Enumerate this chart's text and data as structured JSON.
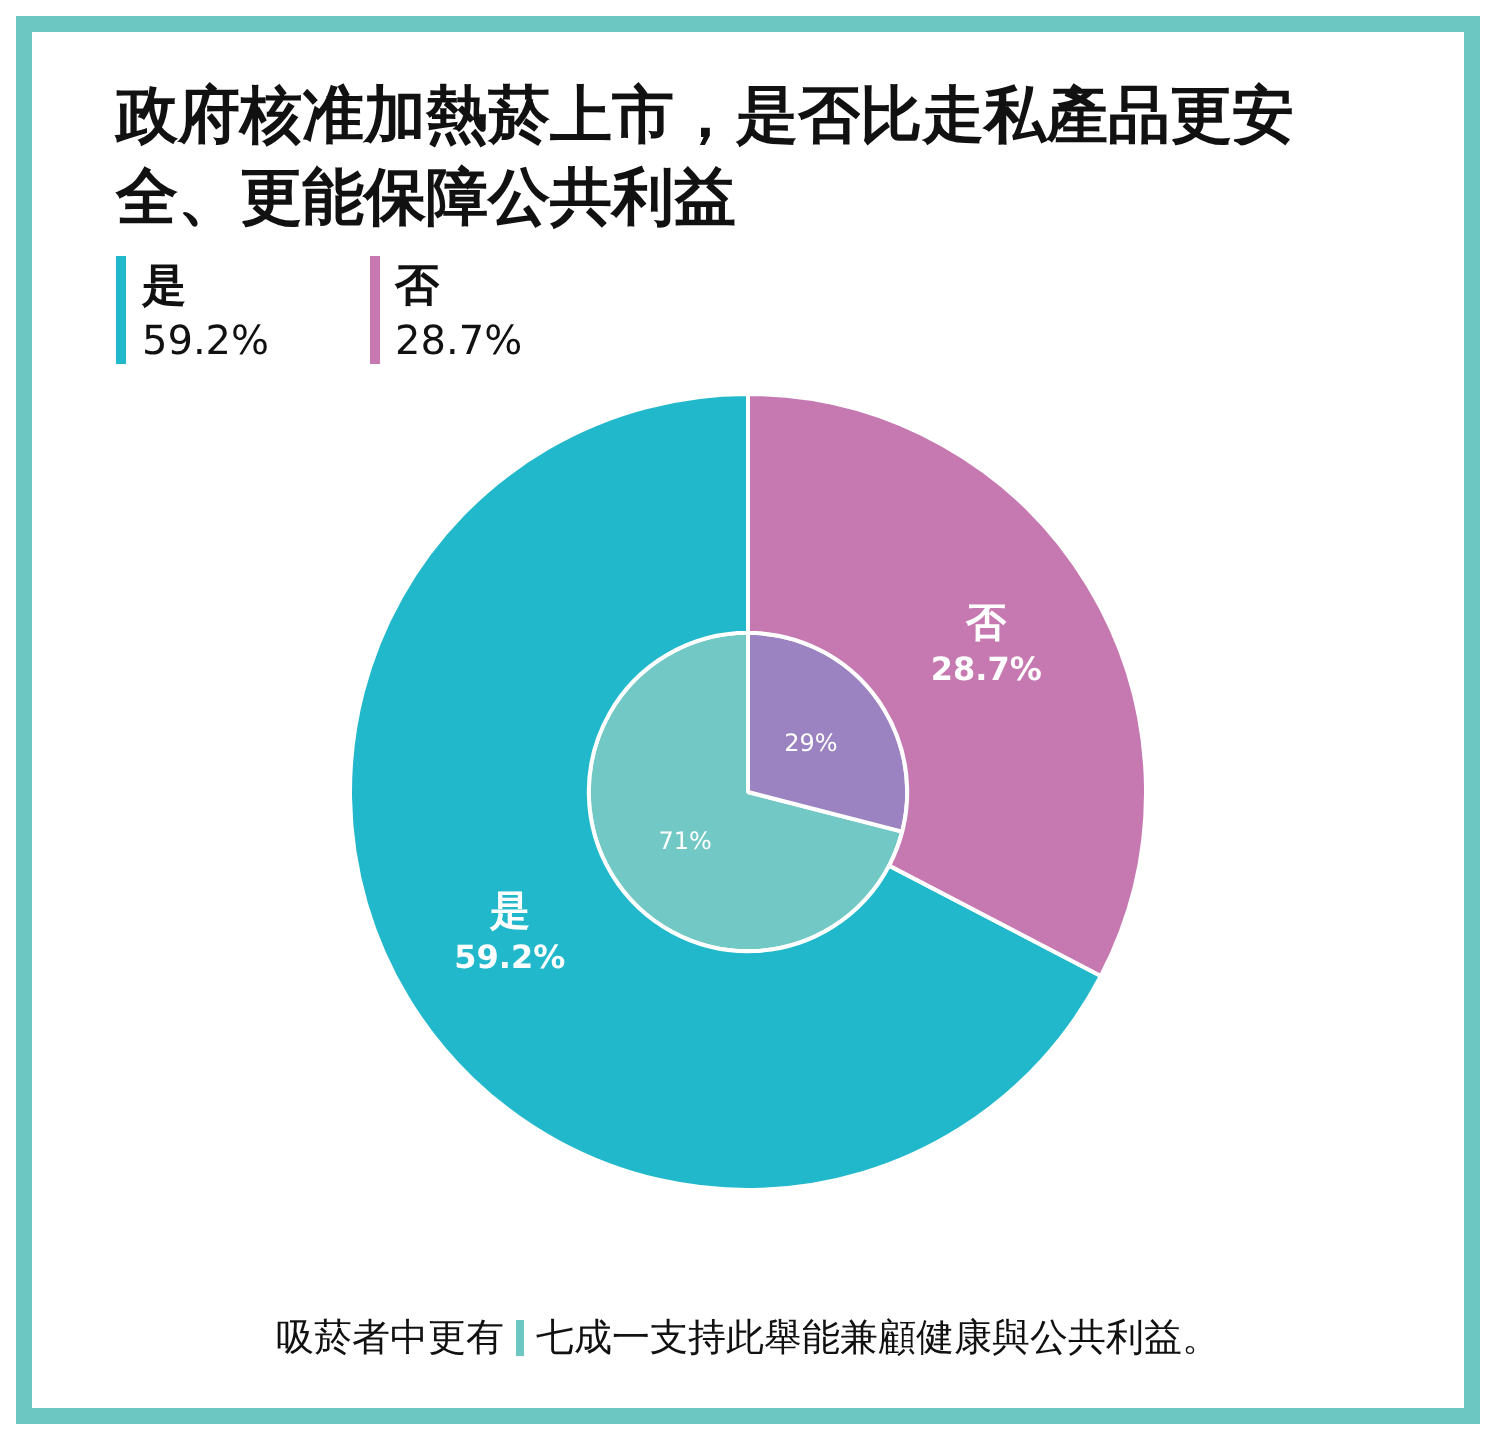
{
  "chart_data": {
    "type": "donut",
    "title": "政府核准加熱菸上市，是否比走私產品更安全、更能保障公共利益",
    "categories": [
      "是",
      "否"
    ],
    "series": [
      {
        "values": [
          59.2,
          28.7
        ],
        "colors": [
          "#22b8cc",
          "#c678b0"
        ],
        "value_labels": [
          "59.2%",
          "28.7%"
        ]
      },
      {
        "values": [
          71,
          29
        ],
        "colors": [
          "#72c8c4",
          "#9b82c0"
        ],
        "value_labels": [
          "71%",
          "29%"
        ]
      }
    ],
    "data_labels": true,
    "annotations": [
      "吸菸者中更有",
      "七成一支持此舉能兼顧健康與公共利益。"
    ]
  }
}
